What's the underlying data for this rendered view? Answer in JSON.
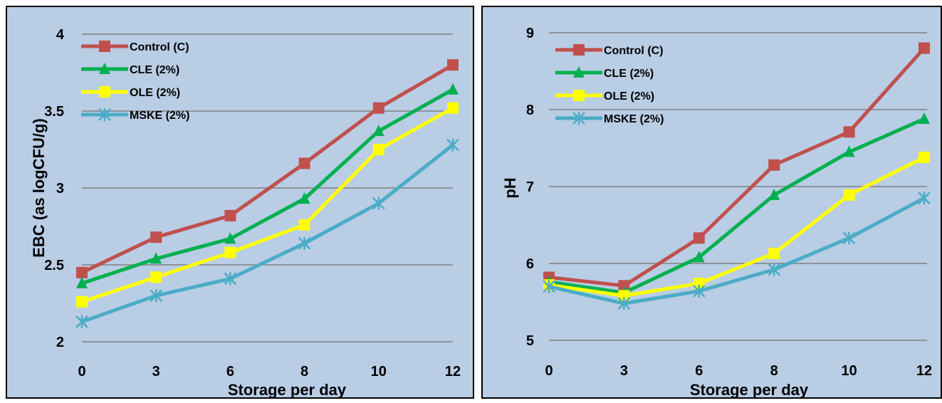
{
  "chart_data": [
    {
      "type": "line",
      "xlabel": "Storage per day",
      "ylabel": "EBC (as logCFU/g)",
      "categories": [
        "0",
        "3",
        "6",
        "8",
        "10",
        "12"
      ],
      "ylim": [
        2,
        4
      ],
      "yticks": [
        "2",
        "2.5",
        "3",
        "3.5",
        "4"
      ],
      "grid": "horizontal",
      "legend": "top-left",
      "series": [
        {
          "name": "Control (C)",
          "color": "#c0504d",
          "marker": "square",
          "values": [
            2.45,
            2.68,
            2.82,
            3.16,
            3.52,
            3.8
          ]
        },
        {
          "name": "CLE (2%)",
          "color": "#00b050",
          "marker": "triangle",
          "values": [
            2.38,
            2.54,
            2.67,
            2.93,
            3.37,
            3.64
          ]
        },
        {
          "name": "OLE (2%)",
          "color": "#ffff00",
          "marker": "square",
          "values": [
            2.26,
            2.42,
            2.58,
            2.76,
            3.25,
            3.52
          ]
        },
        {
          "name": "MSKE (2%)",
          "color": "#4bacc6",
          "marker": "star",
          "values": [
            2.13,
            2.3,
            2.41,
            2.64,
            2.9,
            3.28
          ]
        }
      ]
    },
    {
      "type": "line",
      "xlabel": "Storage per day",
      "ylabel": "pH",
      "categories": [
        "0",
        "3",
        "6",
        "8",
        "10",
        "12"
      ],
      "ylim": [
        5,
        9
      ],
      "yticks": [
        "5",
        "6",
        "7",
        "8",
        "9"
      ],
      "grid": "horizontal",
      "legend": "top-left",
      "series": [
        {
          "name": "Control (C)",
          "color": "#c0504d",
          "marker": "square",
          "values": [
            5.82,
            5.71,
            6.33,
            7.28,
            7.71,
            8.8
          ]
        },
        {
          "name": "CLE (2%)",
          "color": "#00b050",
          "marker": "triangle",
          "values": [
            5.76,
            5.62,
            6.08,
            6.89,
            7.45,
            7.88
          ]
        },
        {
          "name": "OLE (2%)",
          "color": "#ffff00",
          "marker": "square",
          "values": [
            5.72,
            5.58,
            5.74,
            6.13,
            6.89,
            7.38
          ]
        },
        {
          "name": "MSKE (2%)",
          "color": "#4bacc6",
          "marker": "star",
          "values": [
            5.7,
            5.48,
            5.64,
            5.92,
            6.33,
            6.85
          ]
        }
      ]
    }
  ]
}
